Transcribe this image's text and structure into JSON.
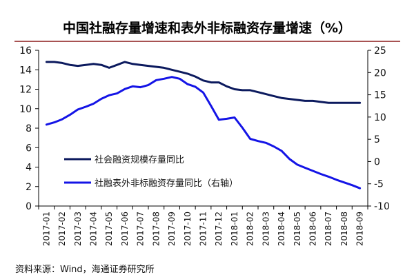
{
  "chart_data": {
    "type": "line",
    "title": "中国社融存量增速和表外非标融资存量增速（%）",
    "source": "资料来源：Wind，海通证券研究所",
    "categories": [
      "2017-01",
      "2017-02",
      "2017-03",
      "2017-04",
      "2017-05",
      "2017-06",
      "2017-07",
      "2017-08",
      "2017-09",
      "2017-10",
      "2017-11",
      "2017-12",
      "2018-01",
      "2018-02",
      "2018-03",
      "2018-04",
      "2018-05",
      "2018-06",
      "2018-07",
      "2018-08",
      "2018-09"
    ],
    "y_left": {
      "min": 0,
      "max": 16,
      "ticks": [
        0,
        2,
        4,
        6,
        8,
        10,
        12,
        14,
        16
      ]
    },
    "y_right": {
      "min": -10,
      "max": 25,
      "ticks": [
        -10,
        -5,
        0,
        5,
        10,
        15,
        20,
        25
      ]
    },
    "legend_position": "middle-left",
    "grid": false,
    "colors": {
      "series1": "#0c1a5e",
      "series2": "#1414e6",
      "title_rule": "#8b1a1a"
    },
    "series": [
      {
        "name": "社会融资规模存量同比",
        "axis": "left",
        "x": [
          0,
          0.5,
          1,
          1.5,
          2,
          2.5,
          3,
          3.5,
          4,
          4.5,
          5,
          5.5,
          6,
          6.5,
          7,
          7.5,
          8,
          8.5,
          9,
          9.5,
          10,
          10.5,
          11,
          11.5,
          12,
          12.5,
          13,
          13.5,
          14,
          14.5,
          15,
          15.5,
          16,
          16.5,
          17,
          17.5,
          18,
          18.5,
          19,
          19.5,
          20
        ],
        "values": [
          14.8,
          14.8,
          14.7,
          14.5,
          14.4,
          14.5,
          14.6,
          14.5,
          14.2,
          14.5,
          14.8,
          14.6,
          14.5,
          14.4,
          14.3,
          14.2,
          14.0,
          13.8,
          13.6,
          13.3,
          12.9,
          12.7,
          12.7,
          12.3,
          12.0,
          11.9,
          11.9,
          11.7,
          11.5,
          11.3,
          11.1,
          11.0,
          10.9,
          10.8,
          10.8,
          10.7,
          10.6,
          10.6,
          10.6,
          10.6,
          10.6
        ]
      },
      {
        "name": "社融表外非标融资存量同比（右轴）",
        "axis": "right",
        "x": [
          0,
          0.5,
          1,
          1.5,
          2,
          2.5,
          3,
          3.5,
          4,
          4.5,
          5,
          5.5,
          6,
          6.5,
          7,
          7.5,
          8,
          8.5,
          9,
          9.5,
          10,
          10.5,
          11,
          11.5,
          12,
          12.5,
          13,
          13.5,
          14,
          14.5,
          15,
          15.5,
          16,
          16.5,
          17,
          17.5,
          18,
          18.5,
          19,
          19.5,
          20
        ],
        "values": [
          8.3,
          8.8,
          9.5,
          10.5,
          11.7,
          12.3,
          13.0,
          14.1,
          14.9,
          15.3,
          16.3,
          16.9,
          16.7,
          17.2,
          18.3,
          18.6,
          19.0,
          18.6,
          17.4,
          16.8,
          15.5,
          12.5,
          9.4,
          9.6,
          9.9,
          7.6,
          5.1,
          4.6,
          4.2,
          3.4,
          2.4,
          0.6,
          -0.7,
          -1.4,
          -2.1,
          -2.8,
          -3.4,
          -4.1,
          -4.7,
          -5.3,
          -6.0
        ]
      }
    ]
  }
}
